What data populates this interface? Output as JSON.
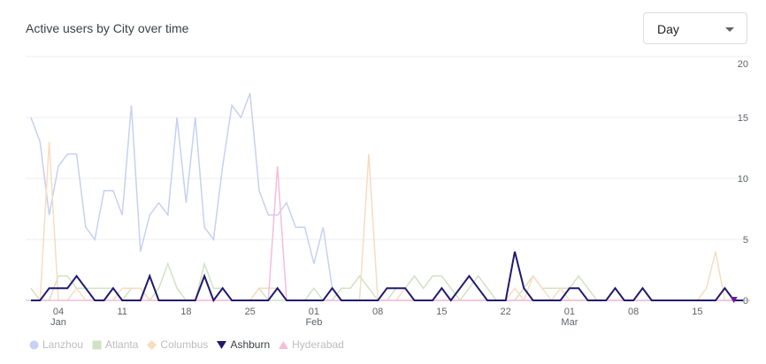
{
  "chart_data": {
    "type": "line",
    "title": "Active users by City over time",
    "granularity": "Day",
    "ylim": [
      0,
      20
    ],
    "y_ticks": [
      0,
      5,
      10,
      15,
      20
    ],
    "x_ticks": [
      {
        "day": 3,
        "label": "04",
        "sublabel": "Jan"
      },
      {
        "day": 10,
        "label": "11",
        "sublabel": ""
      },
      {
        "day": 17,
        "label": "18",
        "sublabel": ""
      },
      {
        "day": 24,
        "label": "25",
        "sublabel": ""
      },
      {
        "day": 31,
        "label": "01",
        "sublabel": "Feb"
      },
      {
        "day": 38,
        "label": "08",
        "sublabel": ""
      },
      {
        "day": 45,
        "label": "15",
        "sublabel": ""
      },
      {
        "day": 52,
        "label": "22",
        "sublabel": ""
      },
      {
        "day": 59,
        "label": "01",
        "sublabel": "Mar"
      },
      {
        "day": 66,
        "label": "08",
        "sublabel": ""
      },
      {
        "day": 73,
        "label": "15",
        "sublabel": ""
      }
    ],
    "legend_position": "bottom-left",
    "series": [
      {
        "name": "Lanzhou",
        "color": "#c6d1f3",
        "marker": "circle",
        "faded": true,
        "values": [
          15,
          13,
          7,
          11,
          12,
          12,
          6,
          5,
          9,
          9,
          7,
          16,
          4,
          7,
          8,
          7,
          15,
          8,
          15,
          6,
          5,
          11,
          16,
          15,
          17,
          9,
          7,
          7,
          8,
          6,
          6,
          3,
          6,
          1,
          0,
          0,
          0,
          0,
          0,
          0,
          0,
          0,
          0,
          0,
          0,
          0,
          0,
          0,
          0,
          0,
          0,
          0,
          0,
          0,
          0,
          0,
          0,
          0,
          0,
          0,
          0,
          0,
          0,
          0,
          0,
          0,
          0,
          0,
          0,
          0,
          0,
          0,
          0,
          0,
          0,
          0,
          0,
          0
        ]
      },
      {
        "name": "Atlanta",
        "color": "#cfe3c4",
        "marker": "square",
        "faded": true,
        "values": [
          1,
          0,
          0,
          2,
          2,
          1,
          1,
          1,
          1,
          1,
          0,
          1,
          1,
          0,
          1,
          3,
          1,
          0,
          0,
          3,
          1,
          1,
          0,
          0,
          0,
          1,
          0,
          0,
          0,
          0,
          0,
          1,
          0,
          0,
          1,
          1,
          2,
          1,
          0,
          0,
          1,
          1,
          2,
          1,
          2,
          2,
          1,
          0,
          1,
          2,
          1,
          0,
          0,
          0,
          1,
          2,
          1,
          1,
          1,
          1,
          2,
          1,
          0,
          0,
          1,
          0,
          0,
          1,
          0,
          0,
          0,
          0,
          0,
          0,
          0,
          0,
          1,
          0,
          0
        ]
      },
      {
        "name": "Columbus",
        "color": "#f8dcc0",
        "marker": "diamond",
        "faded": true,
        "values": [
          0,
          0,
          13,
          0,
          0,
          1,
          0,
          0,
          0,
          0,
          1,
          1,
          1,
          0,
          0,
          0,
          0,
          0,
          0,
          0,
          0,
          0,
          0,
          0,
          0,
          1,
          1,
          1,
          0,
          0,
          0,
          0,
          0,
          0,
          0,
          0,
          0,
          12,
          0,
          0,
          0,
          1,
          0,
          0,
          0,
          1,
          0,
          0,
          0,
          0,
          0,
          0,
          0,
          1,
          0,
          2,
          1,
          0,
          1,
          0,
          0,
          0,
          0,
          0,
          0,
          0,
          0,
          0,
          0,
          0,
          0,
          0,
          0,
          0,
          1,
          4,
          0,
          0,
          0
        ]
      },
      {
        "name": "Ashburn",
        "color": "#21196e",
        "marker": "triangle",
        "faded": false,
        "values": [
          0,
          0,
          1,
          1,
          1,
          2,
          1,
          0,
          0,
          1,
          0,
          0,
          0,
          2,
          0,
          0,
          0,
          0,
          0,
          2,
          0,
          1,
          0,
          0,
          0,
          0,
          0,
          1,
          0,
          0,
          0,
          0,
          0,
          1,
          0,
          0,
          0,
          0,
          0,
          1,
          1,
          1,
          0,
          0,
          0,
          1,
          0,
          1,
          2,
          1,
          0,
          0,
          0,
          4,
          1,
          0,
          0,
          0,
          0,
          1,
          1,
          0,
          0,
          0,
          1,
          0,
          0,
          1,
          0,
          0,
          0,
          0,
          0,
          0,
          0,
          0,
          1,
          0,
          0
        ]
      },
      {
        "name": "Hyderabad",
        "color": "#f4bddc",
        "marker": "triangle-up",
        "faded": true,
        "values": [
          0,
          0,
          0,
          0,
          0,
          0,
          0,
          0,
          0,
          0,
          0,
          0,
          0,
          0,
          0,
          0,
          0,
          0,
          0,
          0,
          0,
          0,
          0,
          0,
          0,
          0,
          0,
          11,
          0,
          0,
          0,
          0,
          0,
          0,
          0,
          0,
          0,
          0,
          0,
          0,
          0,
          0,
          0,
          0,
          0,
          0,
          0,
          0,
          0,
          0,
          0,
          0,
          0,
          0,
          0,
          0,
          0,
          0,
          0,
          0,
          0,
          0,
          0,
          0,
          0,
          0,
          0,
          0,
          0,
          0,
          0,
          0,
          0,
          0,
          0,
          0,
          0,
          0,
          0
        ]
      }
    ]
  }
}
